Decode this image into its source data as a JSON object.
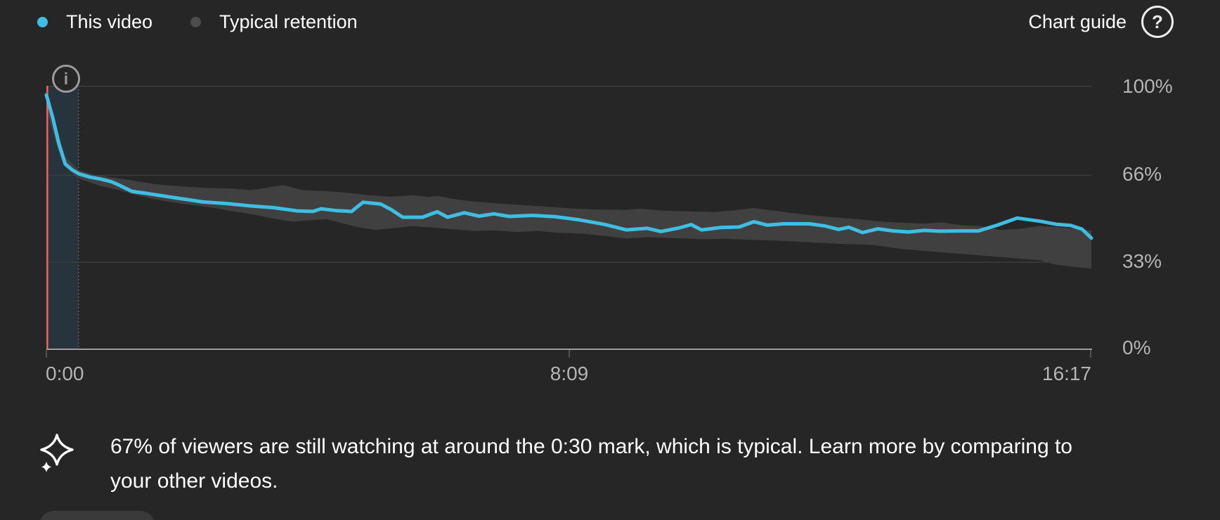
{
  "legend": {
    "items": [
      {
        "label": "This video",
        "color": "#3fbde2"
      },
      {
        "label": "Typical retention",
        "color": "#4d4d4d"
      }
    ]
  },
  "chart_guide": {
    "label": "Chart guide",
    "icon_glyph": "?"
  },
  "icons": {
    "info_glyph": "i"
  },
  "insight": {
    "text": "67% of viewers are still watching at around the 0:30 mark, which is typical. Learn more by comparing to your other videos.",
    "lines": [
      "67% of viewers are still watching at around the 0:30 mark, which is typical. Learn more by comparing to",
      "your other videos."
    ]
  },
  "chart_data": {
    "type": "line",
    "title": "Audience retention",
    "x_ticks": [
      "0:00",
      "8:09",
      "16:17"
    ],
    "y_ticks": [
      "100%",
      "66%",
      "33%",
      "0%"
    ],
    "y_gridlines_pct": [
      100,
      66,
      33
    ],
    "ylim": [
      0,
      100
    ],
    "x_range": [
      "0:00",
      "16:17"
    ],
    "legend_position": "top-left",
    "highlight": {
      "label": "0:30 mark",
      "start_fraction": 0.0,
      "end_fraction": 0.0307,
      "marker_color": "#f05d5d",
      "fill": "#28343d",
      "edge_color": "#4e6472"
    },
    "colors": {
      "this_video": "#3fbde2",
      "typical_band": "#404040",
      "gridline": "#3d3d3d",
      "axis_line": "#9c9c9c",
      "axis_text": "#b4b4b4"
    },
    "series": [
      {
        "name": "This video",
        "type": "line",
        "color": "#3fbde2",
        "points": [
          [
            0,
            96.5
          ],
          [
            0.006,
            88
          ],
          [
            0.012,
            78
          ],
          [
            0.018,
            70.3
          ],
          [
            0.025,
            68
          ],
          [
            0.031,
            66.6
          ],
          [
            0.042,
            65.3
          ],
          [
            0.052,
            64.6
          ],
          [
            0.062,
            63.6
          ],
          [
            0.07,
            62.2
          ],
          [
            0.082,
            59.9
          ],
          [
            0.095,
            59.2
          ],
          [
            0.105,
            58.6
          ],
          [
            0.128,
            57.2
          ],
          [
            0.15,
            55.9
          ],
          [
            0.172,
            55.3
          ],
          [
            0.195,
            54.4
          ],
          [
            0.218,
            53.7
          ],
          [
            0.24,
            52.5
          ],
          [
            0.255,
            52.3
          ],
          [
            0.263,
            53.3
          ],
          [
            0.278,
            52.6
          ],
          [
            0.292,
            52.3
          ],
          [
            0.303,
            55.8
          ],
          [
            0.32,
            55.1
          ],
          [
            0.33,
            53
          ],
          [
            0.341,
            50.1
          ],
          [
            0.36,
            50.1
          ],
          [
            0.374,
            52.2
          ],
          [
            0.384,
            50.1
          ],
          [
            0.4,
            51.8
          ],
          [
            0.414,
            50.5
          ],
          [
            0.428,
            51.4
          ],
          [
            0.443,
            50.4
          ],
          [
            0.465,
            50.8
          ],
          [
            0.487,
            50.3
          ],
          [
            0.51,
            49.1
          ],
          [
            0.534,
            47.4
          ],
          [
            0.555,
            45.3
          ],
          [
            0.575,
            45.9
          ],
          [
            0.588,
            44.7
          ],
          [
            0.605,
            46
          ],
          [
            0.617,
            47.3
          ],
          [
            0.627,
            45.3
          ],
          [
            0.645,
            46.2
          ],
          [
            0.663,
            46.4
          ],
          [
            0.677,
            48.4
          ],
          [
            0.69,
            47.1
          ],
          [
            0.705,
            47.6
          ],
          [
            0.73,
            47.6
          ],
          [
            0.745,
            46.8
          ],
          [
            0.758,
            45.5
          ],
          [
            0.768,
            46.3
          ],
          [
            0.781,
            44.3
          ],
          [
            0.796,
            45.7
          ],
          [
            0.81,
            44.9
          ],
          [
            0.825,
            44.5
          ],
          [
            0.84,
            45.1
          ],
          [
            0.855,
            44.8
          ],
          [
            0.875,
            44.9
          ],
          [
            0.892,
            44.9
          ],
          [
            0.91,
            47.1
          ],
          [
            0.929,
            49.8
          ],
          [
            0.951,
            48.6
          ],
          [
            0.967,
            47.4
          ],
          [
            0.98,
            47
          ],
          [
            0.991,
            45.6
          ],
          [
            1,
            42.2
          ]
        ]
      },
      {
        "name": "Typical retention",
        "type": "band",
        "color": "#404040",
        "upper": [
          [
            0,
            96
          ],
          [
            0.01,
            84
          ],
          [
            0.018,
            73
          ],
          [
            0.031,
            68
          ],
          [
            0.045,
            66.3
          ],
          [
            0.06,
            65.3
          ],
          [
            0.085,
            63.9
          ],
          [
            0.105,
            62.6
          ],
          [
            0.13,
            61.8
          ],
          [
            0.155,
            61.2
          ],
          [
            0.175,
            61
          ],
          [
            0.196,
            60.4
          ],
          [
            0.216,
            61.6
          ],
          [
            0.226,
            62.3
          ],
          [
            0.245,
            60.4
          ],
          [
            0.268,
            60
          ],
          [
            0.29,
            59.3
          ],
          [
            0.31,
            58.4
          ],
          [
            0.33,
            57.9
          ],
          [
            0.35,
            58.4
          ],
          [
            0.366,
            57.8
          ],
          [
            0.375,
            58.2
          ],
          [
            0.39,
            57
          ],
          [
            0.41,
            56
          ],
          [
            0.43,
            55.4
          ],
          [
            0.455,
            54.7
          ],
          [
            0.48,
            54.1
          ],
          [
            0.505,
            53.4
          ],
          [
            0.53,
            53
          ],
          [
            0.555,
            52.9
          ],
          [
            0.568,
            53.3
          ],
          [
            0.59,
            52.6
          ],
          [
            0.615,
            52.3
          ],
          [
            0.64,
            52.1
          ],
          [
            0.663,
            52.9
          ],
          [
            0.677,
            53.6
          ],
          [
            0.7,
            52.4
          ],
          [
            0.725,
            51.1
          ],
          [
            0.75,
            50.2
          ],
          [
            0.775,
            49.4
          ],
          [
            0.8,
            48.4
          ],
          [
            0.82,
            48
          ],
          [
            0.84,
            47.7
          ],
          [
            0.857,
            48.1
          ],
          [
            0.875,
            47.1
          ],
          [
            0.895,
            46.7
          ],
          [
            0.912,
            45.3
          ],
          [
            0.93,
            45.6
          ],
          [
            0.95,
            46.8
          ],
          [
            0.968,
            46.4
          ],
          [
            0.985,
            45.8
          ],
          [
            1,
            45
          ]
        ],
        "lower": [
          [
            0,
            91
          ],
          [
            0.01,
            77
          ],
          [
            0.018,
            69
          ],
          [
            0.031,
            64.8
          ],
          [
            0.05,
            62.2
          ],
          [
            0.07,
            60.3
          ],
          [
            0.085,
            58.6
          ],
          [
            0.105,
            56.8
          ],
          [
            0.13,
            55.2
          ],
          [
            0.155,
            54
          ],
          [
            0.175,
            52.6
          ],
          [
            0.2,
            51
          ],
          [
            0.217,
            49.6
          ],
          [
            0.235,
            48.4
          ],
          [
            0.25,
            48.9
          ],
          [
            0.268,
            49.4
          ],
          [
            0.285,
            47.6
          ],
          [
            0.3,
            46.2
          ],
          [
            0.315,
            45.3
          ],
          [
            0.33,
            45.9
          ],
          [
            0.35,
            46.7
          ],
          [
            0.37,
            46.2
          ],
          [
            0.39,
            45.5
          ],
          [
            0.41,
            44.9
          ],
          [
            0.43,
            45.1
          ],
          [
            0.45,
            44.5
          ],
          [
            0.47,
            44.9
          ],
          [
            0.49,
            44.2
          ],
          [
            0.51,
            43.9
          ],
          [
            0.535,
            43
          ],
          [
            0.555,
            42
          ],
          [
            0.575,
            42.5
          ],
          [
            0.6,
            42.2
          ],
          [
            0.625,
            41.8
          ],
          [
            0.65,
            41.9
          ],
          [
            0.675,
            41.5
          ],
          [
            0.7,
            41.2
          ],
          [
            0.73,
            40.6
          ],
          [
            0.76,
            40
          ],
          [
            0.79,
            39.6
          ],
          [
            0.82,
            38
          ],
          [
            0.85,
            37
          ],
          [
            0.875,
            36.2
          ],
          [
            0.9,
            35.4
          ],
          [
            0.925,
            34.6
          ],
          [
            0.95,
            33.8
          ],
          [
            0.965,
            32.2
          ],
          [
            0.98,
            31.4
          ],
          [
            1,
            30.6
          ]
        ]
      }
    ]
  }
}
